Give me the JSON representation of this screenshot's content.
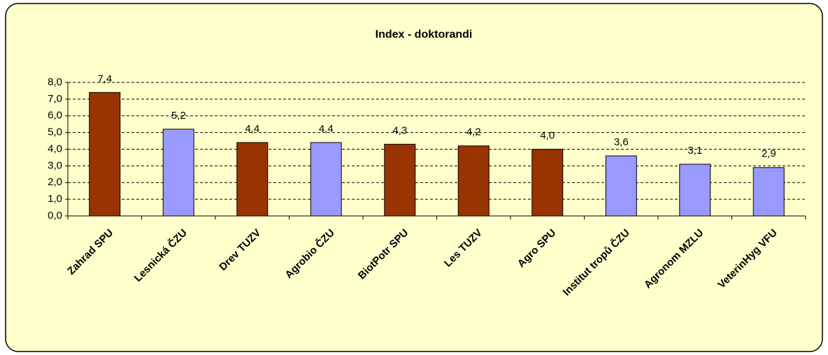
{
  "chart_data": {
    "type": "bar",
    "title": "Index - doktorandi",
    "categories": [
      "Zahrad SPU",
      "Lesnická ČZU",
      "Drev TUZV",
      "Agrobio ČZU",
      "BiotPotr SPU",
      "Les TUZV",
      "Agro SPU",
      "Institut tropů ČZU",
      "Agronom MZLU",
      "VeterinHyg VFU"
    ],
    "values": [
      7.4,
      5.2,
      4.4,
      4.4,
      4.3,
      4.2,
      4.0,
      3.6,
      3.1,
      2.9
    ],
    "value_labels": [
      "7,4",
      "5,2",
      "4,4",
      "4,4",
      "4,3",
      "4,2",
      "4,0",
      "3,6",
      "3,1",
      "2,9"
    ],
    "colors": [
      "#993300",
      "#9999ff",
      "#993300",
      "#9999ff",
      "#993300",
      "#993300",
      "#993300",
      "#9999ff",
      "#9999ff",
      "#9999ff"
    ],
    "ylim": [
      0,
      8
    ],
    "yticks": [
      {
        "value": 0,
        "label": "0,0"
      },
      {
        "value": 1,
        "label": "1,0"
      },
      {
        "value": 2,
        "label": "2,0"
      },
      {
        "value": 3,
        "label": "3,0"
      },
      {
        "value": 4,
        "label": "4,0"
      },
      {
        "value": 5,
        "label": "5,0"
      },
      {
        "value": 6,
        "label": "6,0"
      },
      {
        "value": 7,
        "label": "7,0"
      },
      {
        "value": 8,
        "label": "8,0"
      }
    ],
    "grid": true
  }
}
